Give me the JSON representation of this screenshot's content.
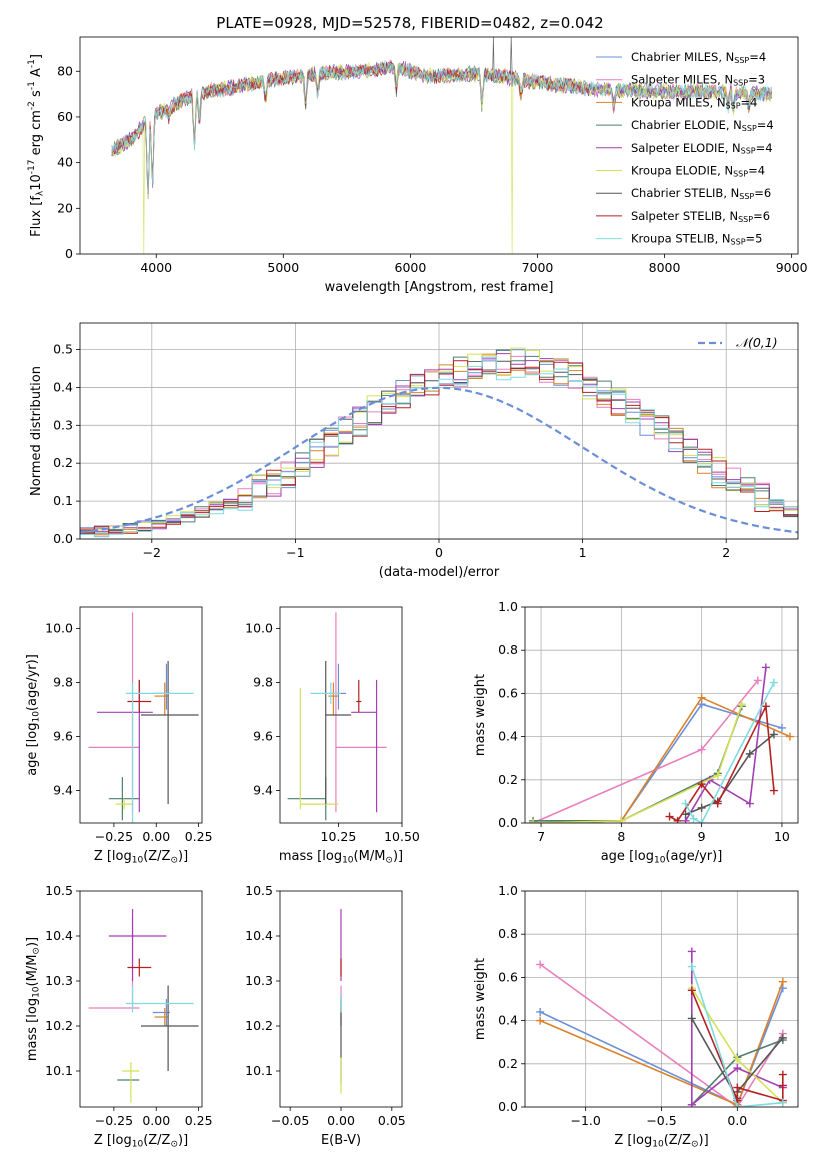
{
  "figure_title": "PLATE=0928, MJD=52578, FIBERID=0482, z=0.042",
  "series_names": [
    "Chabrier MILES, N$_{SSP}$=4",
    "Salpeter MILES, N$_{SSP}$=3",
    "Kroupa MILES, N$_{SSP}$=4",
    "Chabrier ELODIE, N$_{SSP}$=4",
    "Salpeter ELODIE, N$_{SSP}$=4",
    "Kroupa ELODIE, N$_{SSP}$=4",
    "Chabrier STELIB, N$_{SSP}$=6",
    "Salpeter STELIB, N$_{SSP}$=6",
    "Kroupa STELIB, N$_{SSP}$=5"
  ],
  "colors": [
    "#6a8fd8",
    "#e87fbd",
    "#d9822b",
    "#4e7f6e",
    "#a33fb4",
    "#d4e157",
    "#555555",
    "#b22222",
    "#7fdbe0"
  ],
  "chart_data": [
    {
      "id": "spectrum",
      "type": "line",
      "title": "PLATE=0928, MJD=52578, FIBERID=0482, z=0.042",
      "xlabel": "wavelength [Angstrom, rest frame]",
      "ylabel": "Flux [f$_\\lambda$10$^{-17}$ erg cm$^{-2}$ s$^{-1}$ A$^{-1}$]",
      "xlim": [
        3400,
        9050
      ],
      "ylim": [
        0,
        95
      ],
      "xticks": [
        4000,
        5000,
        6000,
        7000,
        8000,
        9000
      ],
      "yticks": [
        0,
        20,
        40,
        60,
        80
      ],
      "grid": false,
      "legend": "top-right",
      "spectrum_range": [
        3650,
        8850
      ],
      "continuum": [
        [
          3650,
          45
        ],
        [
          3800,
          50
        ],
        [
          3950,
          60
        ],
        [
          4100,
          64
        ],
        [
          4300,
          70
        ],
        [
          4500,
          72
        ],
        [
          4800,
          75
        ],
        [
          5000,
          77
        ],
        [
          5300,
          79
        ],
        [
          5600,
          80
        ],
        [
          5900,
          82
        ],
        [
          6100,
          78
        ],
        [
          6300,
          78
        ],
        [
          6500,
          79
        ],
        [
          6700,
          78
        ],
        [
          7000,
          75
        ],
        [
          7500,
          72
        ],
        [
          8000,
          71
        ],
        [
          8500,
          71
        ],
        [
          8850,
          70
        ]
      ],
      "features": [
        {
          "x": 3935,
          "y": 22
        },
        {
          "x": 3970,
          "y": 28
        },
        {
          "x": 4100,
          "y": 60
        },
        {
          "x": 4300,
          "y": 47
        },
        {
          "x": 4340,
          "y": 58
        },
        {
          "x": 4860,
          "y": 66
        },
        {
          "x": 5175,
          "y": 64
        },
        {
          "x": 5270,
          "y": 70
        },
        {
          "x": 5890,
          "y": 72
        },
        {
          "x": 6563,
          "y": 64
        },
        {
          "x": 6870,
          "y": 70
        },
        {
          "x": 7600,
          "y": 64
        },
        {
          "x": 8500,
          "y": 64
        },
        {
          "x": 8542,
          "y": 63
        },
        {
          "x": 8662,
          "y": 64
        }
      ],
      "artifacts": [
        {
          "series": 5,
          "x": 3900,
          "y": 0
        },
        {
          "series": 5,
          "x": 6800,
          "y": 0
        },
        {
          "series": 7,
          "x": 7420,
          "y": 0
        },
        {
          "series": 6,
          "x": 6650,
          "y": 95
        },
        {
          "series": 6,
          "x": 6790,
          "y": 95
        }
      ]
    },
    {
      "id": "residuals",
      "type": "histogram",
      "xlabel": "(data-model)/error",
      "ylabel": "Normed distribution",
      "xlim": [
        -2.5,
        2.5
      ],
      "ylim": [
        0,
        0.57
      ],
      "xticks": [
        -2,
        -1,
        0,
        1,
        2
      ],
      "yticks": [
        0.0,
        0.1,
        0.2,
        0.3,
        0.4,
        0.5
      ],
      "grid": true,
      "legend": "top-right",
      "reference_label": "$\\mathcal{N}(0,1)$",
      "bin_width": 0.1,
      "base_shape": [
        0.016,
        0.02,
        0.024,
        0.03,
        0.035,
        0.042,
        0.05,
        0.06,
        0.07,
        0.082,
        0.095,
        0.11,
        0.13,
        0.15,
        0.175,
        0.2,
        0.225,
        0.255,
        0.285,
        0.31,
        0.34,
        0.365,
        0.385,
        0.4,
        0.415,
        0.43,
        0.44,
        0.45,
        0.455,
        0.46,
        0.465,
        0.46,
        0.45,
        0.44,
        0.425,
        0.405,
        0.385,
        0.36,
        0.335,
        0.31,
        0.285,
        0.255,
        0.23,
        0.2,
        0.175,
        0.15,
        0.13,
        0.11,
        0.09,
        0.075
      ],
      "jitter": 0.04
    },
    {
      "id": "age_vs_Z",
      "type": "errorbar",
      "xlabel": "Z [log$_{10}$(Z/Z$_\\odot$)]",
      "ylabel": "age  [log$_{10}$(age/yr)]",
      "xlim": [
        -0.45,
        0.27
      ],
      "ylim": [
        9.28,
        10.08
      ],
      "xticks": [
        -0.25,
        0.0,
        0.25
      ],
      "yticks": [
        9.4,
        9.6,
        9.8,
        10.0
      ],
      "points": [
        {
          "series": 0,
          "x": 0.06,
          "y": 9.76,
          "xerr": [
            0.08,
            0.02
          ],
          "yerr": [
            0.06,
            0.11
          ]
        },
        {
          "series": 1,
          "x": -0.14,
          "y": 9.56,
          "xerr": [
            0.26,
            0.04
          ],
          "yerr": [
            0.24,
            0.5
          ]
        },
        {
          "series": 2,
          "x": 0.05,
          "y": 9.75,
          "xerr": [
            0.06,
            0.02
          ],
          "yerr": [
            0.07,
            0.05
          ]
        },
        {
          "series": 3,
          "x": -0.2,
          "y": 9.37,
          "xerr": [
            0.08,
            0.1
          ],
          "yerr": [
            0.08,
            0.08
          ]
        },
        {
          "series": 4,
          "x": -0.1,
          "y": 9.69,
          "xerr": [
            0.25,
            0.08
          ],
          "yerr": [
            0.37,
            0.12
          ]
        },
        {
          "series": 5,
          "x": -0.19,
          "y": 9.35,
          "xerr": [
            0.05,
            0.05
          ],
          "yerr": [
            0.02,
            0.02
          ]
        },
        {
          "series": 6,
          "x": 0.07,
          "y": 9.68,
          "xerr": [
            0.16,
            0.18
          ],
          "yerr": [
            0.33,
            0.2
          ]
        },
        {
          "series": 7,
          "x": -0.1,
          "y": 9.73,
          "xerr": [
            0.07,
            0.07
          ],
          "yerr": [
            0.04,
            0.08
          ]
        },
        {
          "series": 8,
          "x": -0.14,
          "y": 9.76,
          "xerr": [
            0.04,
            0.36
          ],
          "yerr": [
            0.5,
            0.04
          ]
        }
      ]
    },
    {
      "id": "age_vs_mass",
      "type": "errorbar",
      "xlabel": "mass [log$_{10}$(M/M$_\\odot$)]",
      "ylabel": "",
      "xlim": [
        10.02,
        10.5
      ],
      "ylim": [
        9.28,
        10.08
      ],
      "xticks": [
        10.25,
        10.5
      ],
      "yticks": [
        9.4,
        9.6,
        9.8,
        10.0
      ],
      "points": [
        {
          "series": 0,
          "x": 10.25,
          "y": 9.76,
          "xerr": [
            0.03,
            0.03
          ],
          "yerr": [
            0.06,
            0.11
          ]
        },
        {
          "series": 1,
          "x": 10.24,
          "y": 9.56,
          "xerr": [
            0.0,
            0.2
          ],
          "yerr": [
            0.24,
            0.5
          ]
        },
        {
          "series": 2,
          "x": 10.23,
          "y": 9.75,
          "xerr": [
            0.02,
            0.02
          ],
          "yerr": [
            0.07,
            0.05
          ]
        },
        {
          "series": 3,
          "x": 10.2,
          "y": 9.37,
          "xerr": [
            0.15,
            0.0
          ],
          "yerr": [
            0.08,
            0.08
          ]
        },
        {
          "series": 4,
          "x": 10.4,
          "y": 9.69,
          "xerr": [
            0.1,
            0.0
          ],
          "yerr": [
            0.37,
            0.12
          ]
        },
        {
          "series": 5,
          "x": 10.1,
          "y": 9.35,
          "xerr": [
            0.0,
            0.15
          ],
          "yerr": [
            0.02,
            0.43
          ]
        },
        {
          "series": 6,
          "x": 10.2,
          "y": 9.68,
          "xerr": [
            0.0,
            0.1
          ],
          "yerr": [
            0.33,
            0.2
          ]
        },
        {
          "series": 7,
          "x": 10.33,
          "y": 9.73,
          "xerr": [
            0.01,
            0.01
          ],
          "yerr": [
            0.04,
            0.08
          ]
        },
        {
          "series": 8,
          "x": 10.22,
          "y": 9.76,
          "xerr": [
            0.08,
            0.04
          ],
          "yerr": [
            0.04,
            0.04
          ]
        }
      ]
    },
    {
      "id": "weight_vs_age",
      "type": "line",
      "xlabel": "age  [log$_{10}$(age/yr)]",
      "ylabel": "mass weight",
      "xlim": [
        6.8,
        10.2
      ],
      "ylim": [
        0,
        1
      ],
      "xticks": [
        7,
        8,
        9,
        10
      ],
      "yticks": [
        0.0,
        0.2,
        0.4,
        0.6,
        0.8,
        1.0
      ],
      "grid": true,
      "series": [
        {
          "series": 0,
          "x": [
            6.9,
            8.0,
            9.0,
            10.0
          ],
          "y": [
            0.0,
            0.01,
            0.55,
            0.44
          ]
        },
        {
          "series": 1,
          "x": [
            6.9,
            9.0,
            9.7
          ],
          "y": [
            0.0,
            0.34,
            0.66
          ]
        },
        {
          "series": 2,
          "x": [
            6.9,
            8.0,
            9.0,
            10.1
          ],
          "y": [
            0.0,
            0.01,
            0.58,
            0.4
          ]
        },
        {
          "series": 3,
          "x": [
            6.9,
            8.0,
            9.2,
            9.5
          ],
          "y": [
            0.01,
            0.01,
            0.23,
            0.54
          ]
        },
        {
          "series": 4,
          "x": [
            8.8,
            9.1,
            9.6,
            9.8
          ],
          "y": [
            0.01,
            0.2,
            0.09,
            0.72
          ]
        },
        {
          "series": 5,
          "x": [
            6.9,
            8.0,
            9.2,
            9.5
          ],
          "y": [
            0.0,
            0.01,
            0.22,
            0.55
          ]
        },
        {
          "series": 6,
          "x": [
            8.8,
            9.0,
            9.2,
            9.6,
            9.9
          ],
          "y": [
            0.04,
            0.07,
            0.1,
            0.32,
            0.41
          ]
        },
        {
          "series": 7,
          "x": [
            8.6,
            8.7,
            9.0,
            9.2,
            9.8,
            9.9
          ],
          "y": [
            0.03,
            0.01,
            0.18,
            0.09,
            0.54,
            0.15
          ]
        },
        {
          "series": 8,
          "x": [
            8.8,
            8.9,
            9.0,
            9.9
          ],
          "y": [
            0.09,
            0.02,
            0.0,
            0.65
          ]
        }
      ]
    },
    {
      "id": "mass_vs_Z",
      "type": "errorbar",
      "xlabel": "Z [log$_{10}$(Z/Z$_\\odot$)]",
      "ylabel": "mass [log$_{10}$(M/M$_\\odot$)]",
      "xlim": [
        -0.45,
        0.27
      ],
      "ylim": [
        10.02,
        10.5
      ],
      "xticks": [
        -0.25,
        0.0,
        0.25
      ],
      "yticks": [
        10.1,
        10.2,
        10.3,
        10.4,
        10.5
      ],
      "points": [
        {
          "series": 0,
          "x": 0.06,
          "y": 10.23,
          "xerr": [
            0.08,
            0.02
          ],
          "yerr": [
            0.03,
            0.03
          ]
        },
        {
          "series": 1,
          "x": -0.14,
          "y": 10.24,
          "xerr": [
            0.26,
            0.04
          ],
          "yerr": [
            0.0,
            0.2
          ]
        },
        {
          "series": 2,
          "x": 0.05,
          "y": 10.22,
          "xerr": [
            0.06,
            0.02
          ],
          "yerr": [
            0.02,
            0.02
          ]
        },
        {
          "series": 3,
          "x": -0.15,
          "y": 10.08,
          "xerr": [
            0.08,
            0.05
          ],
          "yerr": [
            0.0,
            0.0
          ]
        },
        {
          "series": 4,
          "x": -0.14,
          "y": 10.4,
          "xerr": [
            0.14,
            0.2
          ],
          "yerr": [
            0.1,
            0.06
          ]
        },
        {
          "series": 5,
          "x": -0.15,
          "y": 10.1,
          "xerr": [
            0.05,
            0.05
          ],
          "yerr": [
            0.07,
            0.02
          ]
        },
        {
          "series": 6,
          "x": 0.07,
          "y": 10.2,
          "xerr": [
            0.16,
            0.18
          ],
          "yerr": [
            0.1,
            0.09
          ]
        },
        {
          "series": 7,
          "x": -0.1,
          "y": 10.33,
          "xerr": [
            0.07,
            0.07
          ],
          "yerr": [
            0.02,
            0.02
          ]
        },
        {
          "series": 8,
          "x": -0.14,
          "y": 10.25,
          "xerr": [
            0.04,
            0.36
          ],
          "yerr": [
            0.02,
            0.04
          ]
        }
      ]
    },
    {
      "id": "mass_vs_EBV",
      "type": "errorbar",
      "xlabel": "E(B-V)",
      "ylabel": "",
      "xlim": [
        -0.06,
        0.06
      ],
      "ylim": [
        10.02,
        10.5
      ],
      "xticks": [
        -0.05,
        0.0,
        0.05
      ],
      "yticks": [
        10.1,
        10.2,
        10.3,
        10.4,
        10.5
      ],
      "points": [
        {
          "series": 0,
          "x": 0.0,
          "y": 10.23,
          "xerr": [
            0,
            0
          ],
          "yerr": [
            0.03,
            0.03
          ]
        },
        {
          "series": 1,
          "x": 0.0,
          "y": 10.24,
          "xerr": [
            0,
            0
          ],
          "yerr": [
            0.0,
            0.05
          ]
        },
        {
          "series": 2,
          "x": 0.0,
          "y": 10.22,
          "xerr": [
            0,
            0
          ],
          "yerr": [
            0.02,
            0.02
          ]
        },
        {
          "series": 3,
          "x": 0.0,
          "y": 10.1,
          "xerr": [
            0,
            0
          ],
          "yerr": [
            0.03,
            0.03
          ]
        },
        {
          "series": 4,
          "x": 0.0,
          "y": 10.4,
          "xerr": [
            0,
            0
          ],
          "yerr": [
            0.1,
            0.06
          ]
        },
        {
          "series": 5,
          "x": 0.0,
          "y": 10.1,
          "xerr": [
            0,
            0
          ],
          "yerr": [
            0.05,
            0.03
          ]
        },
        {
          "series": 6,
          "x": 0.0,
          "y": 10.2,
          "xerr": [
            0,
            0
          ],
          "yerr": [
            0.07,
            0.07
          ]
        },
        {
          "series": 7,
          "x": 0.0,
          "y": 10.33,
          "xerr": [
            0,
            0
          ],
          "yerr": [
            0.02,
            0.02
          ]
        },
        {
          "series": 8,
          "x": 0.0,
          "y": 10.25,
          "xerr": [
            0,
            0
          ],
          "yerr": [
            0.02,
            0.02
          ]
        }
      ]
    },
    {
      "id": "weight_vs_Z",
      "type": "line",
      "xlabel": "Z [log$_{10}$(Z/Z$_\\odot$)]",
      "ylabel": "mass weight",
      "xlim": [
        -1.4,
        0.4
      ],
      "ylim": [
        0,
        1
      ],
      "xticks": [
        -1.0,
        -0.5,
        0.0
      ],
      "yticks": [
        0.0,
        0.2,
        0.4,
        0.6,
        0.8,
        1.0
      ],
      "grid": true,
      "series": [
        {
          "series": 0,
          "x": [
            -1.3,
            0.0,
            0.3
          ],
          "y": [
            0.44,
            0.01,
            0.55
          ]
        },
        {
          "series": 1,
          "x": [
            -1.3,
            0.0,
            0.3
          ],
          "y": [
            0.66,
            0.0,
            0.34
          ]
        },
        {
          "series": 2,
          "x": [
            -1.3,
            0.0,
            0.3
          ],
          "y": [
            0.4,
            0.01,
            0.58
          ]
        },
        {
          "series": 3,
          "x": [
            -0.3,
            0.0,
            0.3
          ],
          "y": [
            0.01,
            0.23,
            0.31
          ]
        },
        {
          "series": 4,
          "x": [
            -0.3,
            -0.3,
            0.0,
            0.3
          ],
          "y": [
            0.72,
            0.01,
            0.18,
            0.09
          ]
        },
        {
          "series": 5,
          "x": [
            -0.3,
            0.0,
            0.3
          ],
          "y": [
            0.55,
            0.22,
            0.02
          ]
        },
        {
          "series": 6,
          "x": [
            -0.3,
            0.0,
            0.0,
            0.3
          ],
          "y": [
            0.41,
            0.04,
            0.07,
            0.32
          ]
        },
        {
          "series": 7,
          "x": [
            -0.3,
            0.0,
            0.0,
            0.3,
            0.3,
            0.3
          ],
          "y": [
            0.54,
            0.03,
            0.09,
            0.03,
            0.15,
            0.1
          ]
        },
        {
          "series": 8,
          "x": [
            -0.3,
            0.0,
            0.3
          ],
          "y": [
            0.65,
            0.0,
            0.02
          ]
        }
      ]
    }
  ]
}
